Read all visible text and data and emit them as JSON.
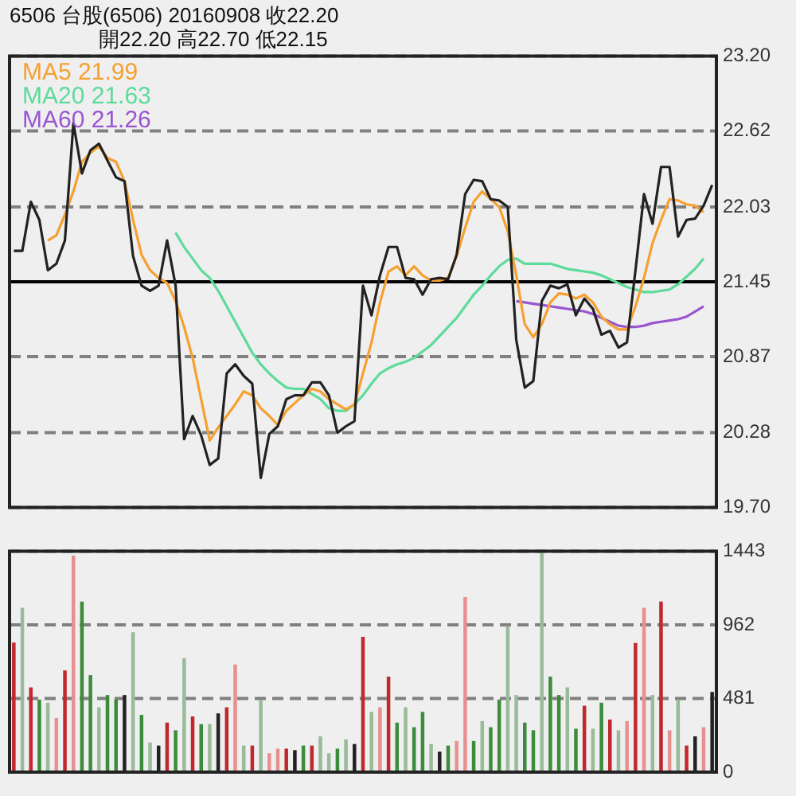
{
  "chart_data": [
    {
      "type": "line",
      "title": "6506 台股(6506) 20160908 收22.20",
      "subtitle": "開22.20 高22.70 低22.15",
      "categories": [
        null,
        null,
        null,
        null,
        null,
        null,
        null,
        null,
        null,
        null,
        null,
        null,
        null,
        null,
        null,
        null,
        null,
        null,
        null,
        null,
        null,
        null,
        null,
        null,
        null,
        null,
        null,
        null,
        null,
        null,
        null,
        null,
        null,
        null,
        null,
        null,
        null,
        null,
        null,
        null,
        null,
        null,
        null,
        null,
        null,
        null,
        null,
        null,
        null,
        null,
        null,
        null,
        null,
        null,
        null,
        null,
        null,
        null,
        null,
        null,
        null,
        null,
        null,
        null,
        null,
        null,
        null,
        null,
        null,
        null,
        null,
        null,
        null,
        null,
        null,
        null,
        null,
        null,
        null,
        null,
        null,
        null,
        null
      ],
      "series": [
        {
          "color": "#222222",
          "values": [
            21.69,
            21.69,
            22.07,
            21.93,
            21.54,
            21.59,
            21.77,
            22.68,
            22.29,
            22.47,
            22.52,
            22.39,
            22.26,
            22.23,
            21.65,
            21.42,
            21.38,
            21.42,
            21.77,
            21.42,
            20.23,
            20.41,
            20.26,
            20.03,
            20.08,
            20.74,
            20.81,
            20.72,
            20.66,
            19.93,
            20.27,
            20.33,
            20.54,
            20.57,
            20.57,
            20.67,
            20.67,
            20.57,
            20.28,
            20.33,
            20.37,
            21.42,
            21.19,
            21.5,
            21.72,
            21.72,
            21.48,
            21.47,
            21.35,
            21.47,
            21.48,
            21.47,
            21.66,
            22.13,
            22.24,
            22.23,
            22.09,
            22.08,
            22.03,
            21.0,
            20.63,
            20.68,
            21.3,
            21.42,
            21.4,
            21.43,
            21.19,
            21.32,
            21.24,
            21.04,
            21.07,
            20.94,
            20.98,
            21.54,
            22.13,
            21.9,
            22.34,
            22.34,
            21.8,
            21.93,
            21.94,
            22.04,
            22.2
          ]
        },
        {
          "name": "MA5 21.99",
          "color": "#f5a030",
          "values": [
            null,
            null,
            null,
            null,
            21.77,
            21.81,
            21.97,
            22.15,
            22.38,
            22.45,
            22.5,
            22.41,
            22.38,
            22.23,
            21.93,
            21.66,
            21.54,
            21.48,
            21.44,
            21.3,
            21.1,
            20.86,
            20.54,
            20.22,
            20.32,
            20.41,
            20.5,
            20.6,
            20.57,
            20.47,
            20.41,
            20.34,
            20.45,
            20.51,
            20.57,
            20.62,
            20.6,
            20.54,
            20.5,
            20.46,
            20.5,
            20.74,
            20.98,
            21.29,
            21.53,
            21.57,
            21.5,
            21.57,
            21.5,
            21.46,
            21.46,
            21.48,
            21.65,
            21.87,
            22.07,
            22.15,
            22.09,
            22.03,
            21.84,
            21.5,
            21.12,
            21.02,
            21.12,
            21.29,
            21.36,
            21.35,
            21.32,
            21.35,
            21.29,
            21.18,
            21.12,
            21.08,
            21.08,
            21.26,
            21.48,
            21.75,
            21.93,
            22.09,
            22.08,
            22.05,
            22.04,
            21.99,
            null
          ]
        },
        {
          "name": "MA20 21.63",
          "color": "#5ddb9a",
          "values": [
            null,
            null,
            null,
            null,
            null,
            null,
            null,
            null,
            null,
            null,
            null,
            null,
            null,
            null,
            null,
            null,
            null,
            null,
            null,
            21.83,
            21.72,
            21.63,
            21.54,
            21.48,
            21.38,
            21.26,
            21.14,
            21.02,
            20.9,
            20.81,
            20.74,
            20.68,
            20.63,
            20.62,
            20.62,
            20.58,
            20.54,
            20.47,
            20.45,
            20.45,
            20.5,
            20.57,
            20.66,
            20.74,
            20.78,
            20.81,
            20.83,
            20.86,
            20.91,
            20.96,
            21.03,
            21.1,
            21.17,
            21.26,
            21.35,
            21.42,
            21.5,
            21.57,
            21.62,
            21.63,
            21.59,
            21.59,
            21.59,
            21.59,
            21.57,
            21.55,
            21.54,
            21.53,
            21.52,
            21.5,
            21.47,
            21.44,
            21.41,
            21.39,
            21.37,
            21.37,
            21.38,
            21.39,
            21.43,
            21.49,
            21.55,
            21.63,
            null
          ]
        },
        {
          "name": "MA60 21.26",
          "color": "#9a55d0",
          "values": [
            null,
            null,
            null,
            null,
            null,
            null,
            null,
            null,
            null,
            null,
            null,
            null,
            null,
            null,
            null,
            null,
            null,
            null,
            null,
            null,
            null,
            null,
            null,
            null,
            null,
            null,
            null,
            null,
            null,
            null,
            null,
            null,
            null,
            null,
            null,
            null,
            null,
            null,
            null,
            null,
            null,
            null,
            null,
            null,
            null,
            null,
            null,
            null,
            null,
            null,
            null,
            null,
            null,
            null,
            null,
            null,
            null,
            null,
            null,
            21.3,
            21.29,
            21.28,
            21.27,
            21.26,
            21.25,
            21.24,
            21.23,
            21.22,
            21.2,
            21.17,
            21.14,
            21.11,
            21.1,
            21.1,
            21.11,
            21.13,
            21.14,
            21.15,
            21.16,
            21.18,
            21.22,
            21.26,
            null
          ]
        }
      ],
      "ylim": [
        19.7,
        23.2
      ],
      "yticks": [
        {
          "value": 19.7,
          "label": "19.70"
        },
        20.28,
        20.87,
        21.45,
        22.03,
        22.62,
        {
          "value": 23.2,
          "label": "23.20"
        }
      ],
      "grid": "y",
      "legend": "top left",
      "marker": "none",
      "ref_lines": [
        {
          "axis": "y",
          "value": 21.45,
          "color": "#000000"
        }
      ]
    },
    {
      "type": "bar",
      "categories": [
        null,
        null,
        null,
        null,
        null,
        null,
        null,
        null,
        null,
        null,
        null,
        null,
        null,
        null,
        null,
        null,
        null,
        null,
        null,
        null,
        null,
        null,
        null,
        null,
        null,
        null,
        null,
        null,
        null,
        null,
        null,
        null,
        null,
        null,
        null,
        null,
        null,
        null,
        null,
        null,
        null,
        null,
        null,
        null,
        null,
        null,
        null,
        null,
        null,
        null,
        null,
        null,
        null,
        null,
        null,
        null,
        null,
        null,
        null,
        null,
        null,
        null,
        null,
        null,
        null,
        null,
        null,
        null,
        null,
        null,
        null,
        null,
        null,
        null,
        null,
        null,
        null,
        null,
        null,
        null,
        null,
        null,
        null
      ],
      "values": [
        843,
        1070,
        550,
        470,
        450,
        350,
        660,
        1410,
        1110,
        630,
        420,
        500,
        470,
        500,
        910,
        370,
        190,
        170,
        320,
        270,
        740,
        360,
        310,
        310,
        380,
        420,
        700,
        170,
        170,
        470,
        120,
        150,
        150,
        140,
        170,
        170,
        230,
        120,
        150,
        210,
        180,
        880,
        390,
        420,
        620,
        320,
        420,
        290,
        390,
        180,
        130,
        170,
        200,
        1140,
        200,
        330,
        290,
        470,
        950,
        500,
        320,
        270,
        1443,
        620,
        500,
        550,
        280,
        430,
        280,
        450,
        340,
        270,
        330,
        840,
        1070,
        500,
        1110,
        270,
        470,
        170,
        230,
        290,
        520
      ],
      "colors": [
        "#c0282d",
        "#99bb99",
        "#c0282d",
        "#3c8c3c",
        "#99bb99",
        "#e89090",
        "#c0282d",
        "#e89090",
        "#3c8c3c",
        "#3c8c3c",
        "#99bb99",
        "#3c8c3c",
        "#3c8c3c",
        "#222222",
        "#99bb99",
        "#3c8c3c",
        "#99bb99",
        "#222222",
        "#c0282d",
        "#3c8c3c",
        "#99bb99",
        "#c0282d",
        "#3c8c3c",
        "#99bb99",
        "#222222",
        "#c0282d",
        "#e89090",
        "#99bb99",
        "#c0282d",
        "#99bb99",
        "#e89090",
        "#e89090",
        "#c0282d",
        "#222222",
        "#3c8c3c",
        "#c0282d",
        "#99bb99",
        "#99bb99",
        "#3c8c3c",
        "#99bb99",
        "#222222",
        "#c0282d",
        "#99bb99",
        "#e89090",
        "#c0282d",
        "#3c8c3c",
        "#99bb99",
        "#3c8c3c",
        "#3c8c3c",
        "#99bb99",
        "#222222",
        "#3c8c3c",
        "#e89090",
        "#e89090",
        "#3c8c3c",
        "#99bb99",
        "#3c8c3c",
        "#3c8c3c",
        "#99bb99",
        "#99bb99",
        "#3c8c3c",
        "#3c8c3c",
        "#99bb99",
        "#3c8c3c",
        "#3c8c3c",
        "#99bb99",
        "#3c8c3c",
        "#c0282d",
        "#99bb99",
        "#3c8c3c",
        "#c0282d",
        "#99bb99",
        "#e89090",
        "#c0282d",
        "#e89090",
        "#99bb99",
        "#c0282d",
        "#e89090",
        "#99bb99",
        "#c0282d",
        "#222222",
        "#e89090",
        "#222222"
      ],
      "ylim": [
        0,
        1443
      ],
      "yticks": [
        0,
        481,
        962,
        1443
      ],
      "grid": "y"
    }
  ]
}
